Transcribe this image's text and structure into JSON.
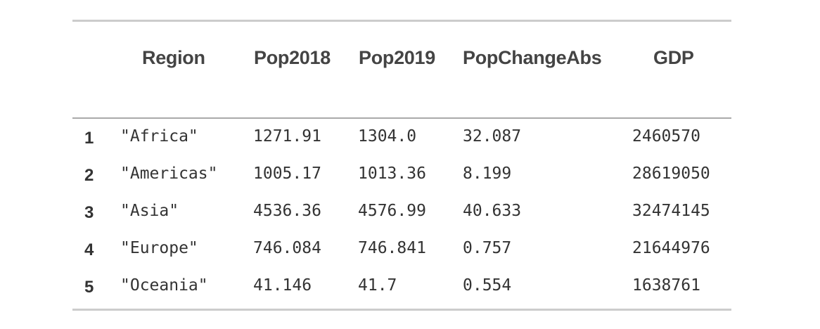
{
  "table": {
    "columns": [
      "Region",
      "Pop2018",
      "Pop2019",
      "PopChangeAbs",
      "GDP"
    ],
    "rows": [
      {
        "index": "1",
        "cells": [
          "\"Africa\"",
          "1271.91",
          "1304.0",
          "32.087",
          "2460570"
        ]
      },
      {
        "index": "2",
        "cells": [
          "\"Americas\"",
          "1005.17",
          "1013.36",
          "8.199",
          "28619050"
        ]
      },
      {
        "index": "3",
        "cells": [
          "\"Asia\"",
          "4536.36",
          "4576.99",
          "40.633",
          "32474145"
        ]
      },
      {
        "index": "4",
        "cells": [
          "\"Europe\"",
          "746.084",
          "746.841",
          "0.757",
          "21644976"
        ]
      },
      {
        "index": "5",
        "cells": [
          "\"Oceania\"",
          "41.146",
          "41.7",
          "0.554",
          "1638761"
        ]
      }
    ]
  }
}
